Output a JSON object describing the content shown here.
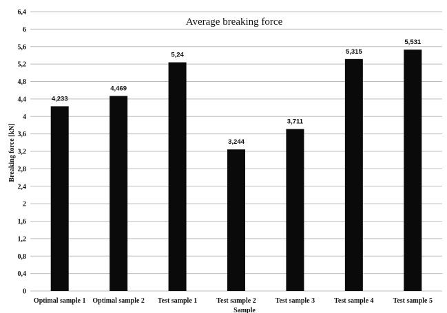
{
  "chart_data": {
    "type": "bar",
    "title": "Average breaking force",
    "xlabel": "Sample",
    "ylabel": "Breaking force [kN]",
    "categories": [
      "Optimal sample 1",
      "Optimal sample 2",
      "Test sample 1",
      "Test sample 2",
      "Test sample 3",
      "Test sample 4",
      "Test sample 5"
    ],
    "values": [
      4.233,
      4.469,
      5.24,
      3.244,
      3.711,
      5.315,
      5.531
    ],
    "value_labels": [
      "4,233",
      "4,469",
      "5,24",
      "3,244",
      "3,711",
      "5,315",
      "5,531"
    ],
    "ylim": [
      0,
      6.4
    ],
    "y_ticks": [
      0,
      0.4,
      0.8,
      1.2,
      1.6,
      2,
      2.4,
      2.8,
      3.2,
      3.6,
      4,
      4.4,
      4.8,
      5.2,
      5.6,
      6,
      6.4
    ],
    "y_tick_labels": [
      "0",
      "0,4",
      "0,8",
      "1,2",
      "1,6",
      "2",
      "2,4",
      "2,8",
      "3,2",
      "3,6",
      "4",
      "4,4",
      "4,8",
      "5,2",
      "5,6",
      "6",
      "6,4"
    ],
    "grid": true,
    "legend": "none",
    "bar_color": "#0a0a0a"
  }
}
